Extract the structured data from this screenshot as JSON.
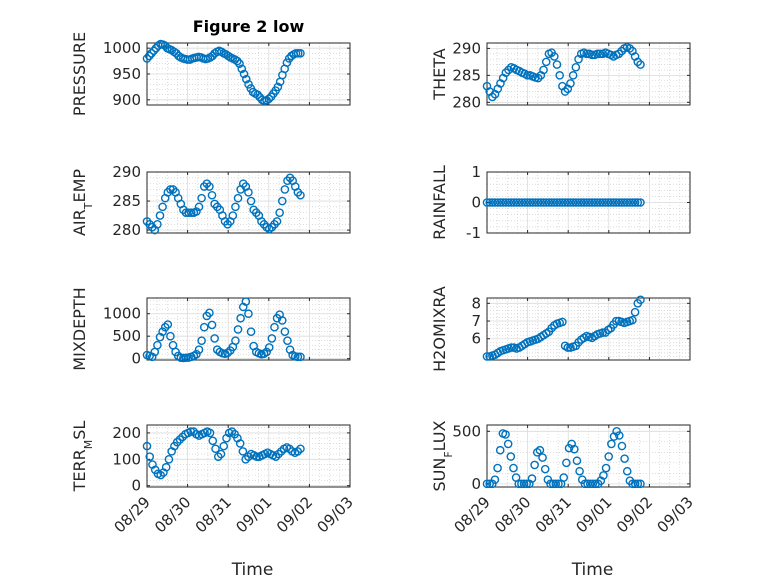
{
  "chart_data": [
    {
      "id": "pressure",
      "type": "scatter",
      "title": "Figure 2 low",
      "ylabel_parts": [
        "PRESSURE"
      ],
      "ylim": [
        890,
        1010
      ],
      "yticks": [
        900,
        950,
        1000
      ],
      "ytick_labels": [
        "900",
        "950",
        "1000"
      ],
      "xlim": [
        0,
        5
      ],
      "xtick_labels": [],
      "x_start": 0.0,
      "x_end": 3.78,
      "y": [
        980,
        985,
        990,
        995,
        1000,
        1005,
        1008,
        1007,
        1005,
        1000,
        998,
        996,
        993,
        990,
        985,
        982,
        980,
        979,
        978,
        978,
        980,
        981,
        982,
        983,
        982,
        980,
        979,
        980,
        982,
        985,
        990,
        993,
        995,
        993,
        990,
        988,
        985,
        982,
        980,
        978,
        975,
        970,
        960,
        950,
        940,
        930,
        922,
        915,
        912,
        910,
        905,
        900,
        898,
        899,
        902,
        906,
        912,
        918,
        925,
        935,
        948,
        960,
        972,
        980,
        985,
        988,
        990,
        990,
        990
      ]
    },
    {
      "id": "theta",
      "type": "scatter",
      "ylabel_parts": [
        "THETA"
      ],
      "ylim": [
        279.5,
        291
      ],
      "yticks": [
        280,
        285,
        290
      ],
      "ytick_labels": [
        "280",
        "285",
        "290"
      ],
      "xlim": [
        0,
        5
      ],
      "xtick_labels": [],
      "x_start": 0.0,
      "x_end": 3.78,
      "y": [
        283,
        282,
        281,
        281.5,
        282.5,
        283.5,
        284.5,
        285.5,
        286,
        286.5,
        286.3,
        286,
        285.8,
        285.5,
        285.3,
        285,
        285,
        284.8,
        284.6,
        284.5,
        285,
        286,
        287.5,
        289,
        289.2,
        288.5,
        287,
        285,
        283,
        282,
        282.5,
        283.5,
        285,
        286.5,
        288,
        289,
        289.2,
        289,
        289,
        288.8,
        288.8,
        289,
        289,
        289,
        289.2,
        289,
        288.8,
        288.5,
        288.8,
        289,
        289.5,
        290,
        290.2,
        290,
        289.5,
        288.5,
        287.5,
        287
      ]
    },
    {
      "id": "air_temp",
      "type": "scatter",
      "ylabel_parts": [
        "AIR",
        "T",
        "EMP"
      ],
      "ylim": [
        279.5,
        290
      ],
      "yticks": [
        280,
        285,
        290
      ],
      "ytick_labels": [
        "280",
        "285",
        "290"
      ],
      "xlim": [
        0,
        5
      ],
      "xtick_labels": [],
      "x_start": 0.0,
      "x_end": 3.78,
      "y": [
        281.5,
        281,
        280.5,
        280,
        281,
        282.5,
        284,
        285.5,
        286.5,
        287,
        287,
        286.5,
        285.5,
        284.5,
        283.5,
        283,
        283,
        283,
        283,
        283.2,
        284,
        285.5,
        287.5,
        288,
        287.5,
        286,
        284.5,
        284,
        283.5,
        282.5,
        281.5,
        281,
        281.5,
        282.5,
        284,
        285.5,
        287,
        288,
        287.5,
        286.5,
        285,
        283.5,
        283,
        282.5,
        281.5,
        281,
        280.5,
        280.2,
        280.5,
        281,
        281.5,
        283,
        285,
        287,
        288.5,
        289,
        288.5,
        287.5,
        286.5,
        286
      ]
    },
    {
      "id": "rainfall",
      "type": "scatter",
      "ylabel_parts": [
        "RAINFALL"
      ],
      "ylim": [
        -1,
        1
      ],
      "yticks": [
        -1,
        0,
        1
      ],
      "ytick_labels": [
        "-1",
        "0",
        "1"
      ],
      "xlim": [
        0,
        5
      ],
      "xtick_labels": [],
      "x_start": 0.0,
      "x_end": 3.78,
      "constant": 0,
      "count": 58
    },
    {
      "id": "mixdepth",
      "type": "scatter",
      "ylabel_parts": [
        "MIXDEPTH"
      ],
      "ylim": [
        -30,
        1350
      ],
      "yticks": [
        0,
        500,
        1000
      ],
      "ytick_labels": [
        "0",
        "500",
        "1000"
      ],
      "xlim": [
        0,
        5
      ],
      "xtick_labels": [],
      "x_start": 0.0,
      "x_end": 3.78,
      "y": [
        80,
        60,
        40,
        150,
        300,
        480,
        600,
        700,
        760,
        500,
        300,
        150,
        60,
        20,
        15,
        20,
        25,
        40,
        60,
        100,
        200,
        400,
        700,
        950,
        1020,
        750,
        450,
        200,
        150,
        120,
        110,
        130,
        180,
        260,
        400,
        650,
        900,
        1150,
        1270,
        1000,
        600,
        280,
        150,
        120,
        100,
        110,
        150,
        250,
        450,
        700,
        900,
        980,
        850,
        600,
        400,
        200,
        80,
        50,
        40,
        40
      ]
    },
    {
      "id": "h2omixra",
      "type": "scatter",
      "ylabel_parts": [
        "H2OMIXRA"
      ],
      "ylim": [
        4.8,
        8.3
      ],
      "yticks": [
        6,
        7,
        8
      ],
      "ytick_labels": [
        "6",
        "7",
        "8"
      ],
      "xlim": [
        0,
        5
      ],
      "xtick_labels": [],
      "x_start": 0.0,
      "x_end": 3.78,
      "y": [
        5.0,
        5.0,
        5.05,
        5.1,
        5.2,
        5.3,
        5.35,
        5.4,
        5.45,
        5.5,
        5.5,
        5.45,
        5.5,
        5.6,
        5.7,
        5.8,
        5.85,
        5.9,
        5.95,
        6.0,
        6.1,
        6.2,
        6.3,
        6.4,
        6.6,
        6.75,
        6.85,
        6.9,
        6.95,
        5.6,
        5.5,
        5.5,
        5.55,
        5.6,
        5.8,
        5.95,
        6.05,
        6.15,
        6.1,
        6.05,
        6.15,
        6.25,
        6.3,
        6.35,
        6.35,
        6.5,
        6.6,
        6.8,
        7.0,
        7.0,
        6.95,
        6.9,
        6.95,
        7.0,
        7.05,
        7.5,
        8.0,
        8.2
      ]
    },
    {
      "id": "terr_msl",
      "type": "scatter",
      "ylabel_parts": [
        "TERR",
        "M",
        "SL"
      ],
      "ylim": [
        -5,
        230
      ],
      "yticks": [
        0,
        100,
        200
      ],
      "ytick_labels": [
        "0",
        "100",
        "200"
      ],
      "xlim": [
        0,
        5
      ],
      "xtick_labels": [
        "08/29",
        "08/30",
        "08/31",
        "09/01",
        "09/02",
        "09/03"
      ],
      "xlabel": "Time",
      "x_start": 0.0,
      "x_end": 3.78,
      "y": [
        150,
        110,
        80,
        60,
        45,
        40,
        50,
        70,
        100,
        130,
        150,
        165,
        175,
        185,
        195,
        200,
        205,
        205,
        195,
        190,
        195,
        200,
        205,
        200,
        170,
        140,
        110,
        120,
        150,
        180,
        200,
        205,
        195,
        180,
        160,
        130,
        100,
        110,
        120,
        115,
        110,
        110,
        115,
        120,
        125,
        120,
        115,
        110,
        120,
        130,
        140,
        145,
        140,
        130,
        125,
        130,
        140
      ]
    },
    {
      "id": "sun_flux",
      "type": "scatter",
      "ylabel_parts": [
        "SUN",
        "F",
        "LUX"
      ],
      "ylim": [
        -30,
        560
      ],
      "yticks": [
        0,
        500
      ],
      "ytick_labels": [
        "0",
        "500"
      ],
      "xlim": [
        0,
        5
      ],
      "xtick_labels": [
        "08/29",
        "08/30",
        "08/31",
        "09/01",
        "09/02",
        "09/03"
      ],
      "xlabel": "Time",
      "x_start": 0.0,
      "x_end": 3.78,
      "y": [
        0,
        0,
        0,
        40,
        150,
        320,
        480,
        470,
        380,
        260,
        150,
        60,
        0,
        0,
        0,
        0,
        0,
        50,
        180,
        300,
        320,
        250,
        140,
        40,
        0,
        0,
        0,
        0,
        0,
        60,
        200,
        340,
        380,
        330,
        220,
        120,
        40,
        0,
        0,
        0,
        0,
        0,
        0,
        30,
        80,
        150,
        260,
        380,
        450,
        500,
        460,
        360,
        240,
        120,
        30,
        0,
        0,
        0,
        0
      ]
    }
  ]
}
